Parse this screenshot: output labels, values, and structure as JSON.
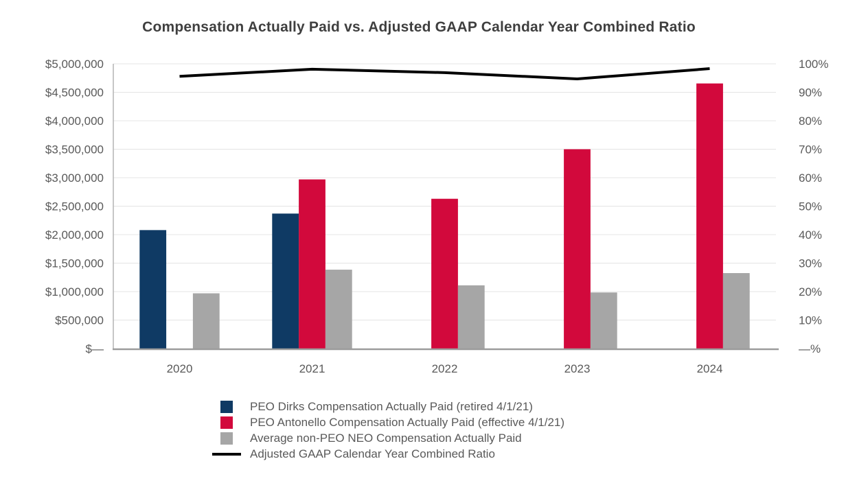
{
  "title": "Compensation Actually Paid vs. Adjusted GAAP Calendar Year Combined Ratio",
  "chart_data": {
    "type": "combo",
    "title": "Compensation Actually Paid vs. Adjusted GAAP Calendar Year Combined Ratio",
    "categories": [
      "2020",
      "2021",
      "2022",
      "2023",
      "2024"
    ],
    "series": [
      {
        "key": "peo-dirks-cap",
        "name": "PEO Dirks Compensation Actually Paid (retired 4/1/21)",
        "type": "bar",
        "axis": "left",
        "color": "#0f3a64",
        "values": [
          2080000,
          2370000,
          0,
          0,
          0
        ]
      },
      {
        "key": "peo-antonello-cap",
        "name": "PEO Antonello Compensation Actually Paid (effective 4/1/21)",
        "type": "bar",
        "axis": "left",
        "color": "#d2093c",
        "values": [
          0,
          2970000,
          2630000,
          3500000,
          4655000
        ]
      },
      {
        "key": "avg-non-peo-neo-cap",
        "name": "Average non-PEO NEO Compensation Actually Paid",
        "type": "bar",
        "axis": "left",
        "color": "#a6a6a6",
        "values": [
          970000,
          1385000,
          1110000,
          985000,
          1325000
        ]
      },
      {
        "key": "adjusted-gaap-combined-ratio",
        "name": "Adjusted GAAP Calendar Year Combined Ratio",
        "type": "line",
        "axis": "right",
        "color": "#000000",
        "values": [
          95.6,
          98.1,
          96.9,
          94.7,
          98.3
        ]
      }
    ],
    "left_axis": {
      "min": 0,
      "max": 5000000,
      "tick_labels": [
        "$5,000,000",
        "$4,500,000",
        "$4,000,000",
        "$3,500,000",
        "$3,000,000",
        "$2,500,000",
        "$2,000,000",
        "$1,500,000",
        "$1,000,000",
        "$500,000",
        "$—"
      ]
    },
    "right_axis": {
      "min": 0,
      "max": 100,
      "tick_labels": [
        "100%",
        "90%",
        "80%",
        "70%",
        "60%",
        "50%",
        "40%",
        "30%",
        "20%",
        "10%",
        "—%"
      ]
    },
    "grid": "horizontal",
    "legend_position": "bottom-left"
  }
}
